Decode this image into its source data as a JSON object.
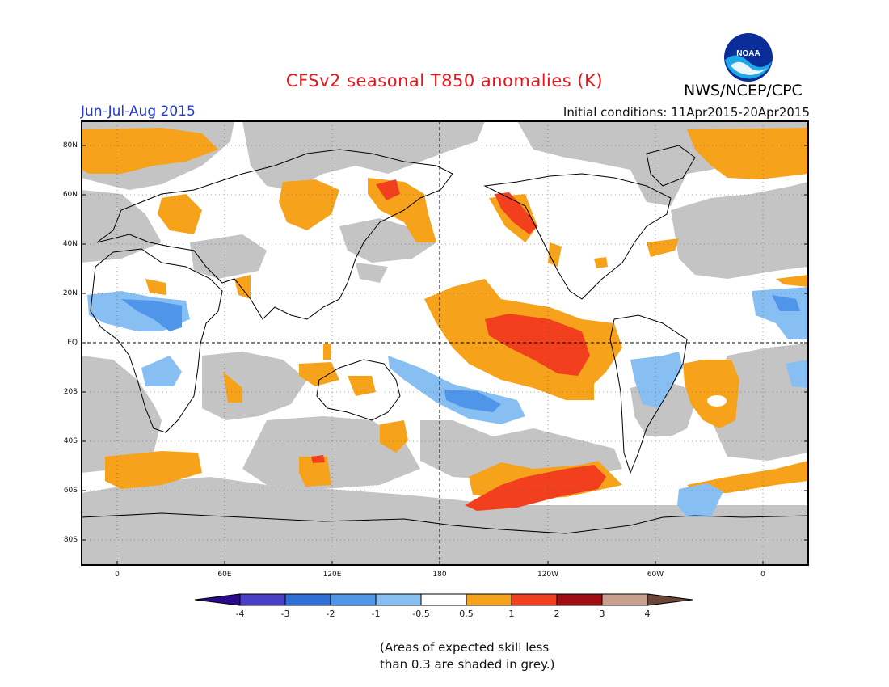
{
  "title": "CFSv2 seasonal T850 anomalies (K)",
  "season": "Jun-Jul-Aug 2015",
  "initial_conditions": "Initial conditions: 11Apr2015-20Apr2015",
  "agency": "NWS/NCEP/CPC",
  "logo": {
    "text": "NOAA",
    "icon": "noaa-logo"
  },
  "lat_labels": [
    "80N",
    "60N",
    "40N",
    "20N",
    "EQ",
    "20S",
    "40S",
    "60S",
    "80S"
  ],
  "lon_labels": [
    "0",
    "60E",
    "120E",
    "180",
    "120W",
    "60W",
    "0"
  ],
  "colorbar": {
    "labels": [
      "-4",
      "-3",
      "-2",
      "-1",
      "-0.5",
      "0.5",
      "1",
      "2",
      "3",
      "4"
    ],
    "colors": [
      "#2a0a8c",
      "#4a3fc6",
      "#2e6fd8",
      "#4f95ea",
      "#88bff2",
      "#ffffff",
      "#f6a21a",
      "#f2401e",
      "#a00e12",
      "#c9a08e",
      "#6b4638"
    ]
  },
  "skill_note": [
    "(Areas of expected skill less",
    "than 0.3 are shaded in grey.)"
  ],
  "colors": {
    "grey_mask": "#c4c4c4",
    "warm_1": "#f6a21a",
    "warm_2": "#f2401e",
    "cool_1": "#88bff2",
    "cool_2": "#4f95ea"
  }
}
